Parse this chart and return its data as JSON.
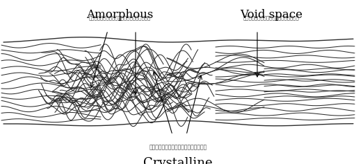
{
  "title_crystalline": "Crystalline",
  "subtitle_crystalline": "ส่วนที่เป็นระเบียบ",
  "title_amorphous": "Amorphous",
  "subtitle_amorphous": "ส่วนที่ไม่เป็นระเบียบ",
  "title_void": "Void space",
  "subtitle_void": "ส่วนที่เป็นช่องว่าง",
  "line_color": "#2d2d2d",
  "bg_color": "#ffffff"
}
